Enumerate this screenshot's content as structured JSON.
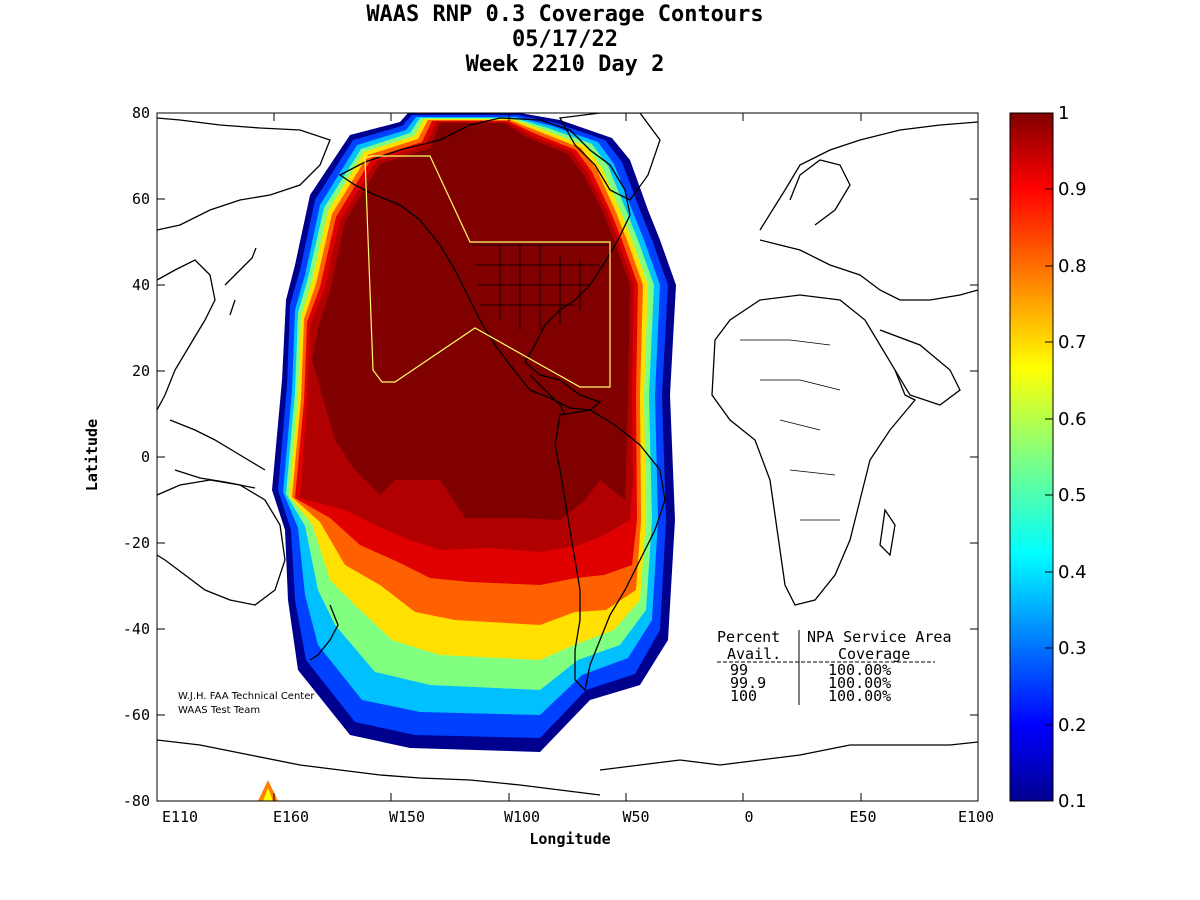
{
  "title_lines": [
    "WAAS RNP 0.3 Coverage Contours",
    "05/17/22",
    "Week 2210 Day 2"
  ],
  "axes": {
    "xlabel": "Longitude",
    "ylabel": "Latitude",
    "x_ticks": [
      "E110",
      "E160",
      "W150",
      "W100",
      "W50",
      "0",
      "E50",
      "E100"
    ],
    "y_ticks": [
      "80",
      "60",
      "40",
      "20",
      "0",
      "-20",
      "-40",
      "-60",
      "-80"
    ]
  },
  "colorbar": {
    "ticks": [
      "1",
      "0.9",
      "0.8",
      "0.7",
      "0.6",
      "0.5",
      "0.4",
      "0.3",
      "0.2",
      "0.1"
    ],
    "min": 0.1,
    "max": 1.0,
    "colormap": "jet"
  },
  "credit": [
    "W.J.H. FAA Technical Center",
    "WAAS Test Team"
  ],
  "coverage_table": {
    "header1": [
      "Percent",
      "NPA Service Area"
    ],
    "header2": [
      "Avail.",
      "Coverage"
    ],
    "rows": [
      [
        "99",
        "100.00%"
      ],
      [
        "99.9",
        "100.00%"
      ],
      [
        "100",
        "100.00%"
      ]
    ]
  },
  "service_area_color": "#ffff66",
  "coverage_max_color": "#800000"
}
